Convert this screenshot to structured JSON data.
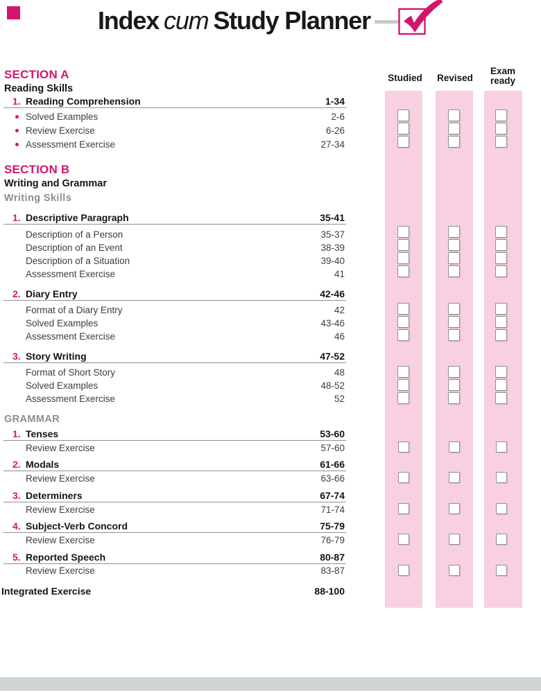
{
  "colors": {
    "accent_magenta": "#d4156e",
    "strip_pink": "#f8d0e1",
    "footer_gray": "#d2d5d6"
  },
  "header": {
    "title_word1": "Index",
    "title_word2": "cum",
    "title_word3": "Study Planner"
  },
  "planner": {
    "columns": [
      {
        "label": "Studied"
      },
      {
        "label": "Revised"
      },
      {
        "label": "Exam ready"
      }
    ],
    "checkbox_groups": [
      {
        "for": "Reading Comprehension sub-items",
        "boxes": 3
      },
      {
        "for": "Descriptive Paragraph sub-items",
        "boxes": 4
      },
      {
        "for": "Diary Entry sub-items",
        "boxes": 3
      },
      {
        "for": "Story Writing sub-items",
        "boxes": 3
      },
      {
        "for": "Tenses",
        "boxes": 1
      },
      {
        "for": "Modals",
        "boxes": 1
      },
      {
        "for": "Determiners",
        "boxes": 1
      },
      {
        "for": "Subject-Verb Concord",
        "boxes": 1
      },
      {
        "for": "Reported Speech",
        "boxes": 1
      }
    ]
  },
  "toc": {
    "rows": [
      {
        "type": "section",
        "label": "SECTION A"
      },
      {
        "type": "subtitle",
        "label": "Reading Skills"
      },
      {
        "type": "chapter",
        "num": "1.",
        "label": "Reading Comprehension",
        "pages": "1-34"
      },
      {
        "type": "bullet",
        "label": "Solved Examples",
        "pages": "2-6"
      },
      {
        "type": "bullet",
        "label": "Review Exercise",
        "pages": "6-26"
      },
      {
        "type": "bullet",
        "label": "Assessment Exercise",
        "pages": "27-34"
      },
      {
        "type": "section",
        "label": "SECTION B"
      },
      {
        "type": "subtitle",
        "label": "Writing and Grammar"
      },
      {
        "type": "grayhead",
        "label": "Writing Skills"
      },
      {
        "type": "chapter",
        "num": "1.",
        "label": "Descriptive Paragraph",
        "pages": "35-41"
      },
      {
        "type": "plain",
        "label": "Description of a Person",
        "pages": "35-37"
      },
      {
        "type": "plain",
        "label": "Description of an Event",
        "pages": "38-39"
      },
      {
        "type": "plain",
        "label": "Description of a Situation",
        "pages": "39-40"
      },
      {
        "type": "plain",
        "label": "Assessment Exercise",
        "pages": "41"
      },
      {
        "type": "chapter",
        "num": "2.",
        "label": "Diary Entry",
        "pages": "42-46"
      },
      {
        "type": "plain",
        "label": "Format of a Diary Entry",
        "pages": "42"
      },
      {
        "type": "plain",
        "label": "Solved Examples",
        "pages": "43-46"
      },
      {
        "type": "plain",
        "label": "Assessment Exercise",
        "pages": "46"
      },
      {
        "type": "chapter",
        "num": "3.",
        "label": "Story Writing",
        "pages": "47-52"
      },
      {
        "type": "plain",
        "label": "Format of Short Story",
        "pages": "48"
      },
      {
        "type": "plain",
        "label": "Solved Examples",
        "pages": "48-52"
      },
      {
        "type": "plain",
        "label": "Assessment Exercise",
        "pages": "52"
      },
      {
        "type": "grayhead",
        "label": "GRAMMAR"
      },
      {
        "type": "chapter",
        "num": "1.",
        "label": "Tenses",
        "pages": "53-60"
      },
      {
        "type": "plain",
        "label": "Review Exercise",
        "pages": "57-60"
      },
      {
        "type": "chapter",
        "num": "2.",
        "label": "Modals",
        "pages": "61-66"
      },
      {
        "type": "plain",
        "label": "Review Exercise",
        "pages": "63-66"
      },
      {
        "type": "chapter",
        "num": "3.",
        "label": "Determiners",
        "pages": "67-74"
      },
      {
        "type": "plain",
        "label": "Review Exercise",
        "pages": "71-74"
      },
      {
        "type": "chapter",
        "num": "4.",
        "label": "Subject-Verb Concord",
        "pages": "75-79"
      },
      {
        "type": "plain",
        "label": "Review Exercise",
        "pages": "76-79"
      },
      {
        "type": "chapter",
        "num": "5.",
        "label": "Reported Speech",
        "pages": "80-87"
      },
      {
        "type": "plain",
        "label": "Review Exercise",
        "pages": "83-87"
      },
      {
        "type": "integrated",
        "label": "Integrated Exercise",
        "pages": "88-100"
      }
    ]
  }
}
